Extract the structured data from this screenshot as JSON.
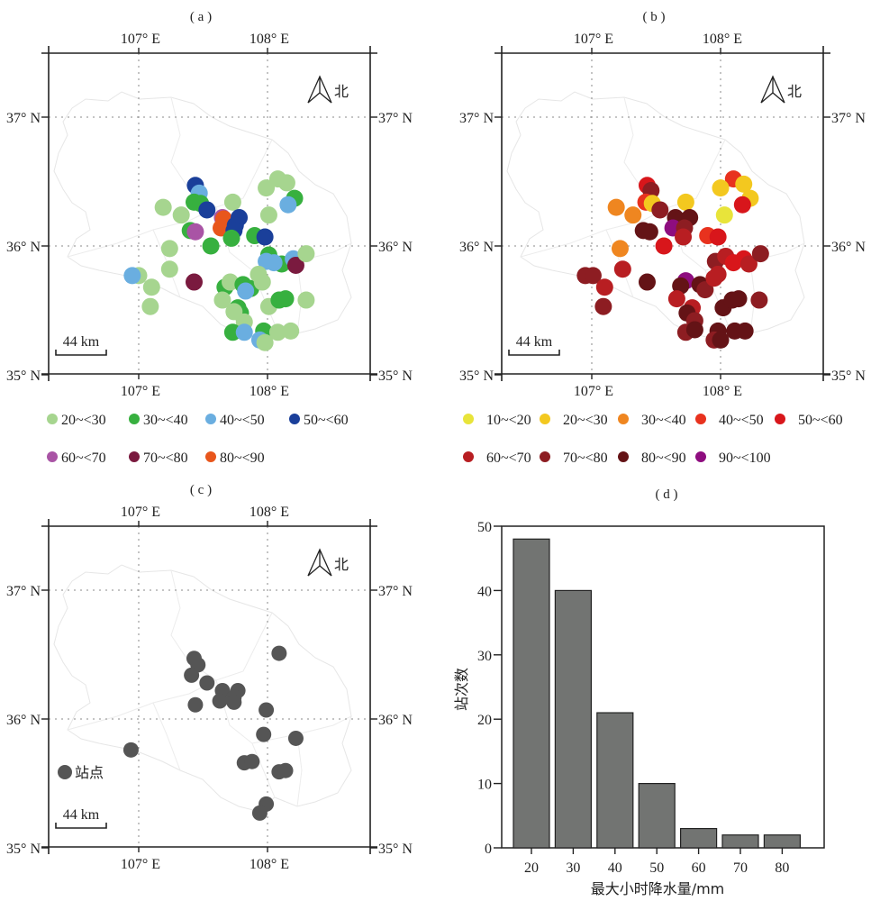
{
  "chart_data": [
    {
      "type": "scatter",
      "panel": "a",
      "title": "( a )",
      "x_ticks": [
        "107° E",
        "108° E"
      ],
      "y_ticks": [
        "35° N",
        "36° N",
        "37° N"
      ],
      "xlim": [
        106.3,
        108.8
      ],
      "ylim": [
        35.0,
        37.5
      ],
      "north_label": "北",
      "scale_label": "44 km",
      "legend": [
        {
          "label": "20~<30",
          "color": "#a6d58f"
        },
        {
          "label": "30~<40",
          "color": "#37b03f"
        },
        {
          "label": "40~<50",
          "color": "#6aaee0"
        },
        {
          "label": "50~<60",
          "color": "#1a3f9a"
        },
        {
          "label": "60~<70",
          "color": "#a954a5"
        },
        {
          "label": "70~<80",
          "color": "#7a1a3f"
        },
        {
          "label": "80~<90",
          "color": "#e8561c"
        }
      ],
      "points": [
        {
          "lon": 108.08,
          "lat": 36.52,
          "c": 0
        },
        {
          "lon": 108.15,
          "lat": 36.49,
          "c": 0
        },
        {
          "lon": 107.99,
          "lat": 36.45,
          "c": 0
        },
        {
          "lon": 108.21,
          "lat": 36.37,
          "c": 1
        },
        {
          "lon": 108.16,
          "lat": 36.32,
          "c": 2
        },
        {
          "lon": 108.01,
          "lat": 36.24,
          "c": 0
        },
        {
          "lon": 107.44,
          "lat": 36.47,
          "c": 3
        },
        {
          "lon": 107.47,
          "lat": 36.41,
          "c": 2
        },
        {
          "lon": 107.43,
          "lat": 36.34,
          "c": 1
        },
        {
          "lon": 107.48,
          "lat": 36.33,
          "c": 1
        },
        {
          "lon": 107.53,
          "lat": 36.28,
          "c": 3
        },
        {
          "lon": 107.19,
          "lat": 36.3,
          "c": 0
        },
        {
          "lon": 107.33,
          "lat": 36.24,
          "c": 0
        },
        {
          "lon": 107.73,
          "lat": 36.34,
          "c": 0
        },
        {
          "lon": 107.65,
          "lat": 36.22,
          "c": 4
        },
        {
          "lon": 107.64,
          "lat": 36.14,
          "c": 6
        },
        {
          "lon": 107.66,
          "lat": 36.21,
          "c": 6
        },
        {
          "lon": 107.78,
          "lat": 36.22,
          "c": 3
        },
        {
          "lon": 107.75,
          "lat": 36.16,
          "c": 3
        },
        {
          "lon": 107.74,
          "lat": 36.12,
          "c": 3
        },
        {
          "lon": 107.4,
          "lat": 36.12,
          "c": 1
        },
        {
          "lon": 107.44,
          "lat": 36.11,
          "c": 4
        },
        {
          "lon": 107.72,
          "lat": 36.06,
          "c": 1
        },
        {
          "lon": 107.9,
          "lat": 36.08,
          "c": 1
        },
        {
          "lon": 107.98,
          "lat": 36.07,
          "c": 3
        },
        {
          "lon": 107.56,
          "lat": 36.0,
          "c": 1
        },
        {
          "lon": 107.24,
          "lat": 35.98,
          "c": 0
        },
        {
          "lon": 107.24,
          "lat": 35.82,
          "c": 0
        },
        {
          "lon": 108.01,
          "lat": 35.93,
          "c": 1
        },
        {
          "lon": 108.11,
          "lat": 35.86,
          "c": 1
        },
        {
          "lon": 107.99,
          "lat": 35.88,
          "c": 2
        },
        {
          "lon": 108.05,
          "lat": 35.87,
          "c": 2
        },
        {
          "lon": 108.2,
          "lat": 35.9,
          "c": 2
        },
        {
          "lon": 108.22,
          "lat": 35.85,
          "c": 5
        },
        {
          "lon": 108.3,
          "lat": 35.94,
          "c": 0
        },
        {
          "lon": 107.0,
          "lat": 35.77,
          "c": 0
        },
        {
          "lon": 106.95,
          "lat": 35.77,
          "c": 2
        },
        {
          "lon": 107.1,
          "lat": 35.68,
          "c": 0
        },
        {
          "lon": 107.09,
          "lat": 35.53,
          "c": 0
        },
        {
          "lon": 107.43,
          "lat": 35.72,
          "c": 5
        },
        {
          "lon": 107.67,
          "lat": 35.68,
          "c": 1
        },
        {
          "lon": 107.71,
          "lat": 35.72,
          "c": 0
        },
        {
          "lon": 107.81,
          "lat": 35.7,
          "c": 1
        },
        {
          "lon": 107.87,
          "lat": 35.67,
          "c": 1
        },
        {
          "lon": 107.83,
          "lat": 35.65,
          "c": 2
        },
        {
          "lon": 107.93,
          "lat": 35.78,
          "c": 0
        },
        {
          "lon": 107.96,
          "lat": 35.72,
          "c": 0
        },
        {
          "lon": 107.65,
          "lat": 35.58,
          "c": 0
        },
        {
          "lon": 107.77,
          "lat": 35.52,
          "c": 1
        },
        {
          "lon": 107.79,
          "lat": 35.48,
          "c": 1
        },
        {
          "lon": 107.74,
          "lat": 35.49,
          "c": 0
        },
        {
          "lon": 108.01,
          "lat": 35.53,
          "c": 0
        },
        {
          "lon": 108.09,
          "lat": 35.58,
          "c": 1
        },
        {
          "lon": 108.14,
          "lat": 35.59,
          "c": 1
        },
        {
          "lon": 108.3,
          "lat": 35.58,
          "c": 0
        },
        {
          "lon": 107.82,
          "lat": 35.41,
          "c": 0
        },
        {
          "lon": 107.73,
          "lat": 35.33,
          "c": 1
        },
        {
          "lon": 107.82,
          "lat": 35.33,
          "c": 2
        },
        {
          "lon": 107.97,
          "lat": 35.34,
          "c": 1
        },
        {
          "lon": 107.94,
          "lat": 35.27,
          "c": 2
        },
        {
          "lon": 107.98,
          "lat": 35.25,
          "c": 0
        },
        {
          "lon": 108.08,
          "lat": 35.33,
          "c": 0
        },
        {
          "lon": 108.18,
          "lat": 35.34,
          "c": 0
        }
      ]
    },
    {
      "type": "scatter",
      "panel": "b",
      "title": "( b )",
      "x_ticks": [
        "107° E",
        "108° E"
      ],
      "y_ticks": [
        "35° N",
        "36° N",
        "37° N"
      ],
      "xlim": [
        106.3,
        108.8
      ],
      "ylim": [
        35.0,
        37.5
      ],
      "north_label": "北",
      "scale_label": "44 km",
      "legend": [
        {
          "label": "10~<20",
          "color": "#e8e43a"
        },
        {
          "label": "20~<30",
          "color": "#f3c81f"
        },
        {
          "label": "30~<40",
          "color": "#ef8620"
        },
        {
          "label": "40~<50",
          "color": "#e8321e"
        },
        {
          "label": "50~<60",
          "color": "#d8161b"
        },
        {
          "label": "60~<70",
          "color": "#b81e22"
        },
        {
          "label": "70~<80",
          "color": "#8d1d22"
        },
        {
          "label": "80~<90",
          "color": "#641316"
        },
        {
          "label": "90~<100",
          "color": "#8e0d7f"
        }
      ],
      "points": [
        {
          "lon": 108.1,
          "lat": 36.52,
          "c": 3
        },
        {
          "lon": 108.18,
          "lat": 36.48,
          "c": 1
        },
        {
          "lon": 108.0,
          "lat": 36.45,
          "c": 1
        },
        {
          "lon": 108.23,
          "lat": 36.37,
          "c": 1
        },
        {
          "lon": 108.17,
          "lat": 36.32,
          "c": 4
        },
        {
          "lon": 108.03,
          "lat": 36.24,
          "c": 0
        },
        {
          "lon": 107.43,
          "lat": 36.47,
          "c": 4
        },
        {
          "lon": 107.46,
          "lat": 36.43,
          "c": 6
        },
        {
          "lon": 107.42,
          "lat": 36.34,
          "c": 3
        },
        {
          "lon": 107.47,
          "lat": 36.33,
          "c": 1
        },
        {
          "lon": 107.53,
          "lat": 36.28,
          "c": 6
        },
        {
          "lon": 107.19,
          "lat": 36.3,
          "c": 2
        },
        {
          "lon": 107.32,
          "lat": 36.24,
          "c": 2
        },
        {
          "lon": 107.73,
          "lat": 36.34,
          "c": 1
        },
        {
          "lon": 107.65,
          "lat": 36.22,
          "c": 7
        },
        {
          "lon": 107.76,
          "lat": 36.22,
          "c": 7
        },
        {
          "lon": 107.63,
          "lat": 36.14,
          "c": 8
        },
        {
          "lon": 107.72,
          "lat": 36.14,
          "c": 6
        },
        {
          "lon": 107.71,
          "lat": 36.07,
          "c": 5
        },
        {
          "lon": 107.4,
          "lat": 36.12,
          "c": 7
        },
        {
          "lon": 107.45,
          "lat": 36.11,
          "c": 7
        },
        {
          "lon": 107.9,
          "lat": 36.08,
          "c": 3
        },
        {
          "lon": 107.98,
          "lat": 36.07,
          "c": 4
        },
        {
          "lon": 107.56,
          "lat": 36.0,
          "c": 4
        },
        {
          "lon": 107.22,
          "lat": 35.98,
          "c": 2
        },
        {
          "lon": 107.24,
          "lat": 35.82,
          "c": 5
        },
        {
          "lon": 107.96,
          "lat": 35.88,
          "c": 6
        },
        {
          "lon": 108.04,
          "lat": 35.92,
          "c": 5
        },
        {
          "lon": 108.1,
          "lat": 35.87,
          "c": 4
        },
        {
          "lon": 108.18,
          "lat": 35.9,
          "c": 4
        },
        {
          "lon": 108.22,
          "lat": 35.86,
          "c": 5
        },
        {
          "lon": 108.31,
          "lat": 35.94,
          "c": 6
        },
        {
          "lon": 106.95,
          "lat": 35.77,
          "c": 6
        },
        {
          "lon": 107.01,
          "lat": 35.77,
          "c": 6
        },
        {
          "lon": 107.1,
          "lat": 35.68,
          "c": 5
        },
        {
          "lon": 107.09,
          "lat": 35.53,
          "c": 6
        },
        {
          "lon": 107.43,
          "lat": 35.72,
          "c": 7
        },
        {
          "lon": 107.73,
          "lat": 35.73,
          "c": 8
        },
        {
          "lon": 107.69,
          "lat": 35.69,
          "c": 7
        },
        {
          "lon": 107.84,
          "lat": 35.7,
          "c": 7
        },
        {
          "lon": 107.88,
          "lat": 35.66,
          "c": 6
        },
        {
          "lon": 107.95,
          "lat": 35.75,
          "c": 5
        },
        {
          "lon": 107.98,
          "lat": 35.78,
          "c": 5
        },
        {
          "lon": 107.66,
          "lat": 35.59,
          "c": 5
        },
        {
          "lon": 107.78,
          "lat": 35.52,
          "c": 5
        },
        {
          "lon": 107.74,
          "lat": 35.48,
          "c": 7
        },
        {
          "lon": 107.8,
          "lat": 35.42,
          "c": 6
        },
        {
          "lon": 108.02,
          "lat": 35.52,
          "c": 7
        },
        {
          "lon": 108.09,
          "lat": 35.58,
          "c": 7
        },
        {
          "lon": 108.14,
          "lat": 35.59,
          "c": 7
        },
        {
          "lon": 108.3,
          "lat": 35.58,
          "c": 6
        },
        {
          "lon": 107.73,
          "lat": 35.33,
          "c": 6
        },
        {
          "lon": 107.8,
          "lat": 35.35,
          "c": 7
        },
        {
          "lon": 107.98,
          "lat": 35.34,
          "c": 7
        },
        {
          "lon": 107.95,
          "lat": 35.27,
          "c": 6
        },
        {
          "lon": 108.0,
          "lat": 35.27,
          "c": 7
        },
        {
          "lon": 108.11,
          "lat": 35.34,
          "c": 7
        },
        {
          "lon": 108.19,
          "lat": 35.34,
          "c": 7
        }
      ]
    },
    {
      "type": "scatter",
      "panel": "c",
      "title": "( c )",
      "x_ticks": [
        "107° E",
        "108° E"
      ],
      "y_ticks": [
        "35° N",
        "36° N",
        "37° N"
      ],
      "xlim": [
        106.3,
        108.8
      ],
      "ylim": [
        35.0,
        37.5
      ],
      "north_label": "北",
      "scale_label": "44 km",
      "legend": [
        {
          "label": "站点",
          "color": "#555555"
        }
      ],
      "points": [
        {
          "lon": 108.09,
          "lat": 36.51
        },
        {
          "lon": 107.43,
          "lat": 36.47
        },
        {
          "lon": 107.46,
          "lat": 36.42
        },
        {
          "lon": 107.41,
          "lat": 36.34
        },
        {
          "lon": 107.53,
          "lat": 36.28
        },
        {
          "lon": 107.65,
          "lat": 36.22
        },
        {
          "lon": 107.77,
          "lat": 36.22
        },
        {
          "lon": 107.74,
          "lat": 36.17
        },
        {
          "lon": 107.63,
          "lat": 36.14
        },
        {
          "lon": 107.74,
          "lat": 36.13
        },
        {
          "lon": 107.44,
          "lat": 36.11
        },
        {
          "lon": 107.99,
          "lat": 36.07
        },
        {
          "lon": 107.97,
          "lat": 35.88
        },
        {
          "lon": 108.22,
          "lat": 35.85
        },
        {
          "lon": 106.94,
          "lat": 35.76
        },
        {
          "lon": 107.82,
          "lat": 35.66
        },
        {
          "lon": 107.88,
          "lat": 35.67
        },
        {
          "lon": 108.09,
          "lat": 35.59
        },
        {
          "lon": 108.14,
          "lat": 35.6
        },
        {
          "lon": 107.99,
          "lat": 35.34
        },
        {
          "lon": 107.94,
          "lat": 35.27
        }
      ]
    },
    {
      "type": "bar",
      "panel": "d",
      "title": "( d )",
      "categories": [
        "20",
        "30",
        "40",
        "50",
        "60",
        "70",
        "80"
      ],
      "values": [
        48,
        40,
        21,
        10,
        3,
        2,
        2
      ],
      "xlabel": "最大小时降水量/mm",
      "ylabel": "站次数",
      "ylim": [
        0,
        50
      ],
      "y_ticks": [
        "0",
        "10",
        "20",
        "30",
        "40",
        "50"
      ],
      "bar_color": "#727472",
      "grid": false
    }
  ]
}
